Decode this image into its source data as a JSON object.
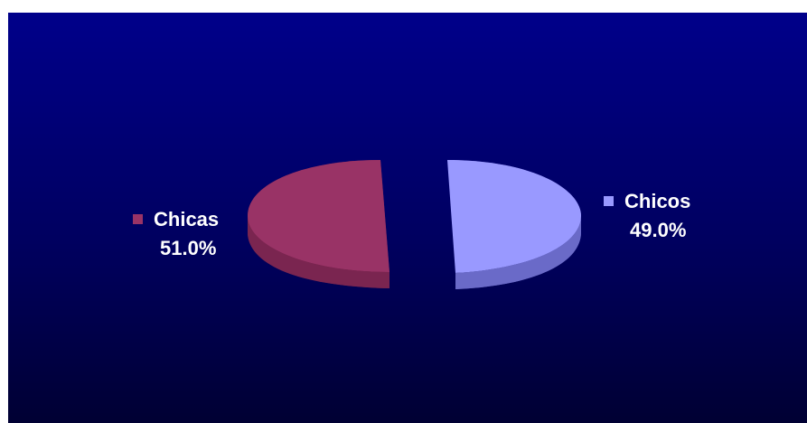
{
  "chart_data": {
    "type": "pie",
    "title": "",
    "slices": [
      {
        "label": "Chicas",
        "value": 51.0,
        "value_label": "51.0%",
        "color": "#993366"
      },
      {
        "label": "Chicos",
        "value": 49.0,
        "value_label": "49.0%",
        "color": "#9999ff"
      }
    ],
    "exploded": true,
    "three_d": true
  },
  "colors": {
    "background_top": "#00008a",
    "background_bottom": "#000033",
    "label_text": "#ffffff"
  }
}
